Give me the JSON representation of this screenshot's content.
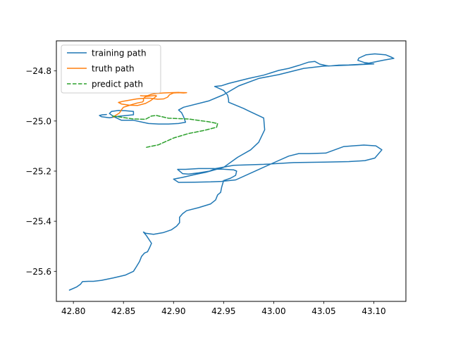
{
  "chart_data": {
    "type": "line",
    "title": "",
    "xlabel": "",
    "ylabel": "",
    "xlim": [
      42.783,
      43.132
    ],
    "ylim": [
      -25.72,
      -24.68
    ],
    "invert_y": true,
    "grid": false,
    "legend_position": "top-left",
    "x_ticks": [
      42.8,
      42.85,
      42.9,
      42.95,
      43.0,
      43.05,
      43.1
    ],
    "x_tick_labels": [
      "42.80",
      "42.85",
      "42.90",
      "42.95",
      "43.00",
      "43.05",
      "43.10"
    ],
    "y_ticks": [
      -24.8,
      -25.0,
      -25.2,
      -25.4,
      -25.6
    ],
    "y_tick_labels": [
      "−24.8",
      "−25.0",
      "−25.2",
      "−25.4",
      "−25.6"
    ],
    "series": [
      {
        "name": "training path",
        "color": "#1f77b4",
        "dash": "solid",
        "points": [
          [
            42.796,
            -25.675
          ],
          [
            42.803,
            -25.663
          ],
          [
            42.807,
            -25.652
          ],
          [
            42.809,
            -25.641
          ],
          [
            42.815,
            -25.64
          ],
          [
            42.82,
            -25.64
          ],
          [
            42.828,
            -25.636
          ],
          [
            42.84,
            -25.626
          ],
          [
            42.852,
            -25.615
          ],
          [
            42.86,
            -25.6
          ],
          [
            42.863,
            -25.581
          ],
          [
            42.866,
            -25.561
          ],
          [
            42.868,
            -25.541
          ],
          [
            42.871,
            -25.527
          ],
          [
            42.874,
            -25.522
          ],
          [
            42.876,
            -25.506
          ],
          [
            42.878,
            -25.488
          ],
          [
            42.873,
            -25.458
          ],
          [
            42.87,
            -25.443
          ],
          [
            42.872,
            -25.448
          ],
          [
            42.88,
            -25.452
          ],
          [
            42.89,
            -25.445
          ],
          [
            42.898,
            -25.434
          ],
          [
            42.903,
            -25.42
          ],
          [
            42.906,
            -25.406
          ],
          [
            42.906,
            -25.384
          ],
          [
            42.909,
            -25.37
          ],
          [
            42.913,
            -25.358
          ],
          [
            42.925,
            -25.346
          ],
          [
            42.937,
            -25.331
          ],
          [
            42.942,
            -25.315
          ],
          [
            42.944,
            -25.295
          ],
          [
            42.947,
            -25.285
          ],
          [
            42.948,
            -25.265
          ],
          [
            42.95,
            -25.238
          ],
          [
            42.957,
            -25.228
          ],
          [
            42.962,
            -25.217
          ],
          [
            42.963,
            -25.2
          ],
          [
            42.96,
            -25.195
          ],
          [
            42.94,
            -25.19
          ],
          [
            42.925,
            -25.19
          ],
          [
            42.912,
            -25.193
          ],
          [
            42.904,
            -25.193
          ],
          [
            42.909,
            -25.21
          ],
          [
            42.915,
            -25.212
          ],
          [
            42.925,
            -25.207
          ],
          [
            42.936,
            -25.2
          ],
          [
            42.942,
            -25.19
          ],
          [
            42.96,
            -25.177
          ],
          [
            42.99,
            -25.173
          ],
          [
            43.02,
            -25.166
          ],
          [
            43.05,
            -25.164
          ],
          [
            43.075,
            -25.162
          ],
          [
            43.091,
            -25.158
          ],
          [
            43.101,
            -25.148
          ],
          [
            43.108,
            -25.115
          ],
          [
            43.102,
            -25.099
          ],
          [
            43.09,
            -25.096
          ],
          [
            43.07,
            -25.102
          ],
          [
            43.052,
            -25.128
          ],
          [
            43.035,
            -25.13
          ],
          [
            43.025,
            -25.13
          ],
          [
            43.015,
            -25.14
          ],
          [
            43.001,
            -25.165
          ],
          [
            42.987,
            -25.19
          ],
          [
            42.962,
            -25.235
          ],
          [
            42.95,
            -25.24
          ],
          [
            42.948,
            -25.241
          ],
          [
            42.937,
            -25.243
          ],
          [
            42.921,
            -25.244
          ],
          [
            42.905,
            -25.245
          ],
          [
            42.9,
            -25.232
          ],
          [
            42.909,
            -25.225
          ],
          [
            42.922,
            -25.213
          ],
          [
            42.932,
            -25.205
          ],
          [
            42.95,
            -25.185
          ],
          [
            42.964,
            -25.145
          ],
          [
            42.977,
            -25.115
          ],
          [
            42.985,
            -25.085
          ],
          [
            42.991,
            -25.035
          ],
          [
            42.99,
            -24.988
          ],
          [
            42.975,
            -24.96
          ],
          [
            42.97,
            -24.95
          ],
          [
            42.955,
            -24.925
          ],
          [
            42.955,
            -24.915
          ],
          [
            42.954,
            -24.897
          ],
          [
            42.95,
            -24.878
          ],
          [
            42.941,
            -24.862
          ],
          [
            42.948,
            -24.859
          ],
          [
            42.955,
            -24.85
          ],
          [
            42.975,
            -24.83
          ],
          [
            42.99,
            -24.817
          ],
          [
            43.005,
            -24.798
          ],
          [
            43.015,
            -24.79
          ],
          [
            43.025,
            -24.778
          ],
          [
            43.035,
            -24.765
          ],
          [
            43.041,
            -24.762
          ],
          [
            43.046,
            -24.773
          ],
          [
            43.055,
            -24.781
          ],
          [
            43.065,
            -24.777
          ],
          [
            43.075,
            -24.776
          ],
          [
            43.09,
            -24.773
          ],
          [
            43.11,
            -24.757
          ],
          [
            43.12,
            -24.75
          ],
          [
            43.118,
            -24.746
          ],
          [
            43.112,
            -24.736
          ],
          [
            43.101,
            -24.732
          ],
          [
            43.092,
            -24.736
          ],
          [
            43.085,
            -24.749
          ],
          [
            43.084,
            -24.758
          ],
          [
            43.09,
            -24.766
          ],
          [
            43.1,
            -24.772
          ],
          [
            43.08,
            -24.776
          ],
          [
            43.05,
            -24.781
          ],
          [
            43.03,
            -24.79
          ],
          [
            43.005,
            -24.815
          ],
          [
            42.985,
            -24.83
          ],
          [
            42.965,
            -24.86
          ],
          [
            42.95,
            -24.895
          ],
          [
            42.935,
            -24.92
          ],
          [
            42.91,
            -24.945
          ],
          [
            42.905,
            -24.956
          ],
          [
            42.908,
            -24.967
          ],
          [
            42.91,
            -24.983
          ],
          [
            42.912,
            -25.005
          ],
          [
            42.905,
            -25.01
          ],
          [
            42.895,
            -25.012
          ],
          [
            42.885,
            -25.012
          ],
          [
            42.875,
            -25.01
          ],
          [
            42.86,
            -24.997
          ],
          [
            42.848,
            -24.997
          ],
          [
            42.84,
            -24.982
          ],
          [
            42.836,
            -24.97
          ],
          [
            42.838,
            -24.962
          ],
          [
            42.845,
            -24.958
          ],
          [
            42.852,
            -24.959
          ],
          [
            42.86,
            -24.962
          ],
          [
            42.86,
            -24.975
          ],
          [
            42.845,
            -24.981
          ],
          [
            42.836,
            -24.987
          ],
          [
            42.828,
            -24.983
          ],
          [
            42.826,
            -24.978
          ],
          [
            42.829,
            -24.975
          ],
          [
            42.833,
            -24.974
          ]
        ]
      },
      {
        "name": "truth path",
        "color": "#ff7f0e",
        "dash": "solid",
        "points": [
          [
            42.84,
            -24.985
          ],
          [
            42.842,
            -24.978
          ],
          [
            42.846,
            -24.968
          ],
          [
            42.848,
            -24.955
          ],
          [
            42.85,
            -24.945
          ],
          [
            42.857,
            -24.936
          ],
          [
            42.864,
            -24.928
          ],
          [
            42.869,
            -24.924
          ],
          [
            42.87,
            -24.92
          ],
          [
            42.87,
            -24.91
          ],
          [
            42.872,
            -24.903
          ],
          [
            42.877,
            -24.9
          ],
          [
            42.882,
            -24.898
          ],
          [
            42.883,
            -24.9
          ],
          [
            42.88,
            -24.91
          ],
          [
            42.877,
            -24.919
          ],
          [
            42.872,
            -24.93
          ],
          [
            42.864,
            -24.938
          ],
          [
            42.856,
            -24.937
          ],
          [
            42.848,
            -24.932
          ],
          [
            42.845,
            -24.926
          ],
          [
            42.85,
            -24.921
          ],
          [
            42.857,
            -24.916
          ],
          [
            42.863,
            -24.912
          ],
          [
            42.871,
            -24.909
          ],
          [
            42.877,
            -24.909
          ],
          [
            42.882,
            -24.912
          ],
          [
            42.884,
            -24.913
          ],
          [
            42.89,
            -24.912
          ],
          [
            42.894,
            -24.905
          ],
          [
            42.896,
            -24.895
          ],
          [
            42.9,
            -24.888
          ],
          [
            42.905,
            -24.887
          ],
          [
            42.91,
            -24.888
          ],
          [
            42.913,
            -24.887
          ],
          [
            42.905,
            -24.886
          ],
          [
            42.897,
            -24.887
          ],
          [
            42.89,
            -24.888
          ],
          [
            42.883,
            -24.89
          ],
          [
            42.878,
            -24.893
          ],
          [
            42.874,
            -24.899
          ],
          [
            42.87,
            -24.9
          ],
          [
            42.867,
            -24.899
          ]
        ]
      },
      {
        "name": "predict path",
        "color": "#2ca02c",
        "dash": "dashed",
        "points": [
          [
            42.839,
            -24.98
          ],
          [
            42.848,
            -24.985
          ],
          [
            42.86,
            -24.992
          ],
          [
            42.872,
            -24.993
          ],
          [
            42.878,
            -24.98
          ],
          [
            42.883,
            -24.978
          ],
          [
            42.895,
            -24.989
          ],
          [
            42.915,
            -24.992
          ],
          [
            42.935,
            -25.003
          ],
          [
            42.944,
            -25.01
          ],
          [
            42.943,
            -25.025
          ],
          [
            42.93,
            -25.038
          ],
          [
            42.915,
            -25.05
          ],
          [
            42.9,
            -25.068
          ],
          [
            42.885,
            -25.095
          ],
          [
            42.873,
            -25.105
          ]
        ]
      }
    ]
  },
  "legend": {
    "items": [
      {
        "label": "training path",
        "color": "#1f77b4",
        "dash": "solid"
      },
      {
        "label": "truth path",
        "color": "#ff7f0e",
        "dash": "solid"
      },
      {
        "label": "predict path",
        "color": "#2ca02c",
        "dash": "dashed"
      }
    ]
  }
}
